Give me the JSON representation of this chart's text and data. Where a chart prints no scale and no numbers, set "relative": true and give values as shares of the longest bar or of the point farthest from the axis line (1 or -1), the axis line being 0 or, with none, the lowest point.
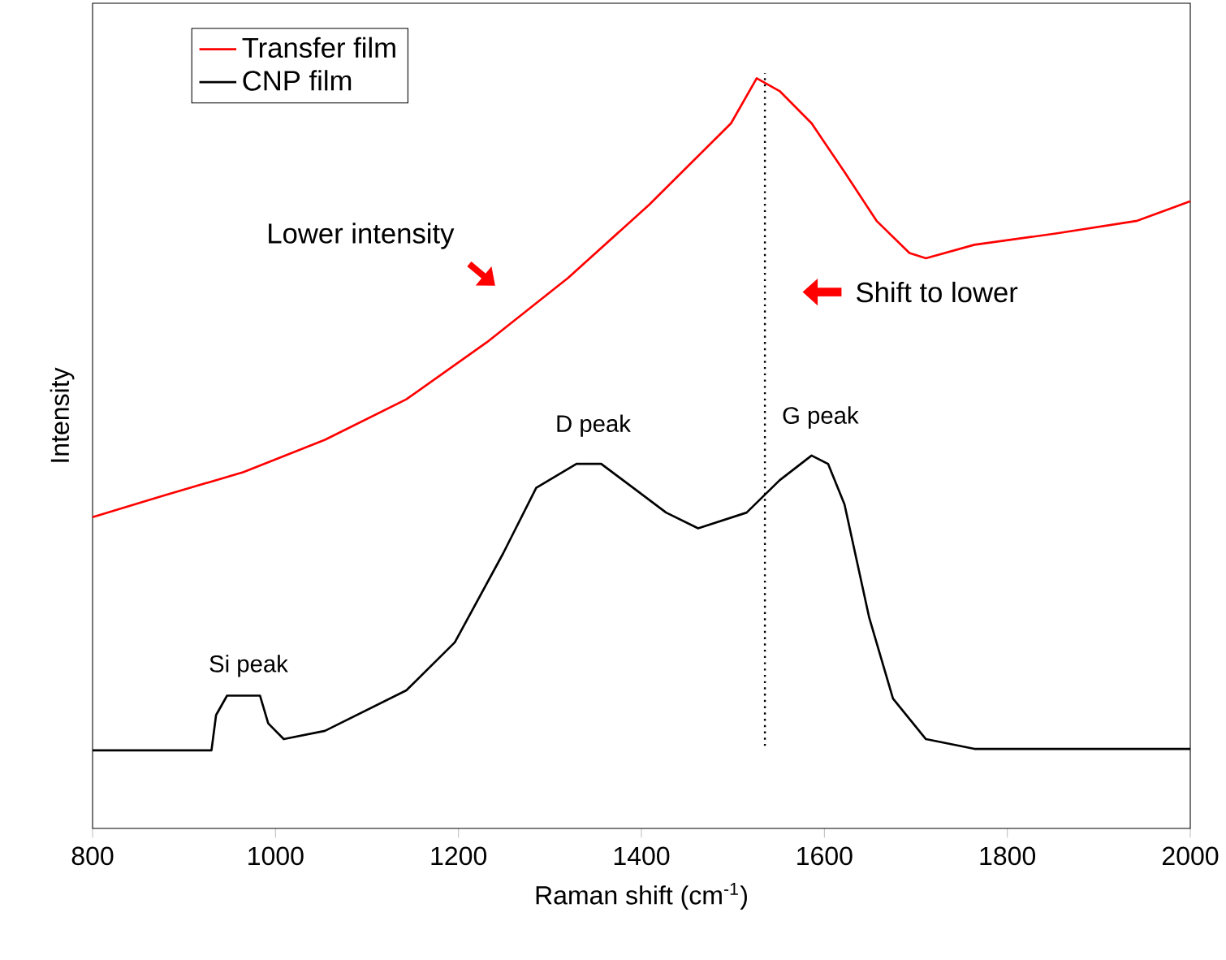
{
  "chart_data": {
    "type": "line",
    "relative": true,
    "xlabel": "Raman shift (cm$^{-1}$)",
    "ylabel": "Intensity",
    "xlim": [
      800,
      2000
    ],
    "xticks": [
      800,
      1000,
      1200,
      1400,
      1600,
      1800,
      2000
    ],
    "legend": "top left",
    "marker": "none",
    "line_style": "solid",
    "series": [
      {
        "name": "Transfer film",
        "color": "#ff0000",
        "x": [
          800,
          876,
          965,
          1054,
          1143,
          1231,
          1320,
          1409,
          1498,
          1526,
          1551,
          1586,
          1622,
          1657,
          1693,
          1711,
          1764,
          1853,
          1942,
          2000
        ],
        "values": [
          0.415,
          0.443,
          0.475,
          0.518,
          0.572,
          0.648,
          0.734,
          0.832,
          0.94,
          1,
          0.983,
          0.94,
          0.875,
          0.81,
          0.767,
          0.76,
          0.778,
          0.793,
          0.81,
          0.836
        ]
      },
      {
        "name": "CNP film",
        "color": "#000000",
        "x": [
          800,
          930,
          935,
          947,
          983,
          992,
          1009,
          1054,
          1143,
          1196,
          1249,
          1285,
          1329,
          1356,
          1391,
          1427,
          1462,
          1515,
          1551,
          1586,
          1604,
          1622,
          1649,
          1675,
          1711,
          1764,
          2000
        ],
        "values": [
          0.104,
          0.104,
          0.151,
          0.177,
          0.177,
          0.14,
          0.119,
          0.13,
          0.184,
          0.248,
          0.367,
          0.454,
          0.486,
          0.486,
          0.454,
          0.421,
          0.4,
          0.421,
          0.464,
          0.497,
          0.486,
          0.432,
          0.281,
          0.173,
          0.119,
          0.106,
          0.106
        ]
      }
    ],
    "ref_lines": [
      {
        "axis": "x",
        "value": 1535,
        "line_style": "dotted",
        "color": "#000000"
      }
    ],
    "annotations": [
      "Lower intensity",
      "Shift to lower",
      "D peak",
      "G peak",
      "Si peak"
    ]
  }
}
